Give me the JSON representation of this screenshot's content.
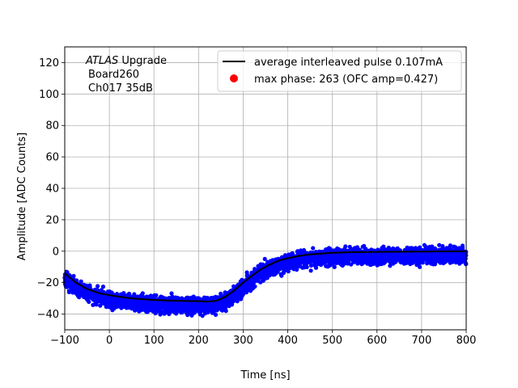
{
  "chart_data": {
    "type": "scatter",
    "title": "",
    "xlabel": "Time [ns]",
    "ylabel": "Amplitude [ADC Counts]",
    "xlim": [
      -100,
      800
    ],
    "ylim": [
      -50,
      130
    ],
    "xticks": [
      -100,
      0,
      100,
      200,
      300,
      400,
      500,
      600,
      700,
      800
    ],
    "yticks": [
      -40,
      -20,
      0,
      20,
      40,
      60,
      80,
      100,
      120
    ],
    "grid": true,
    "legend_position": "top-right",
    "annotation": {
      "line1_italic": "ATLAS",
      "line1_rest": " Upgrade",
      "line2": "Board260",
      "line3": "Ch017 35dB"
    },
    "series": [
      {
        "name": "average interleaved pulse 0.107mA",
        "kind": "line",
        "color": "#000000",
        "x": [
          -100,
          -75,
          -50,
          -25,
          0,
          25,
          50,
          75,
          100,
          125,
          150,
          175,
          200,
          225,
          240,
          260,
          280,
          300,
          320,
          340,
          360,
          380,
          400,
          425,
          450,
          475,
          500,
          550,
          600,
          650,
          700,
          750,
          800
        ],
        "y": [
          -14,
          -20,
          -24,
          -26.5,
          -28,
          -29,
          -30,
          -30.5,
          -31,
          -31.3,
          -31.5,
          -31.7,
          -31.8,
          -32,
          -31.5,
          -29,
          -25,
          -20,
          -15.5,
          -11.5,
          -8.5,
          -6,
          -4.5,
          -3,
          -2,
          -1.5,
          -1,
          -0.6,
          -0.4,
          -0.3,
          -0.2,
          -0.1,
          0
        ]
      },
      {
        "name": "max phase: 263 (OFC amp=0.427)",
        "kind": "points",
        "color": "#ff0000"
      },
      {
        "name": "",
        "kind": "scatter-band",
        "color": "#0000ff",
        "spread": 3.5,
        "offset": -2.5
      }
    ],
    "legend": [
      {
        "label": "average interleaved pulse 0.107mA",
        "marker": "line",
        "color": "#000000"
      },
      {
        "label": "max phase: 263 (OFC amp=0.427)",
        "marker": "dot",
        "color": "#ff0000"
      }
    ]
  }
}
